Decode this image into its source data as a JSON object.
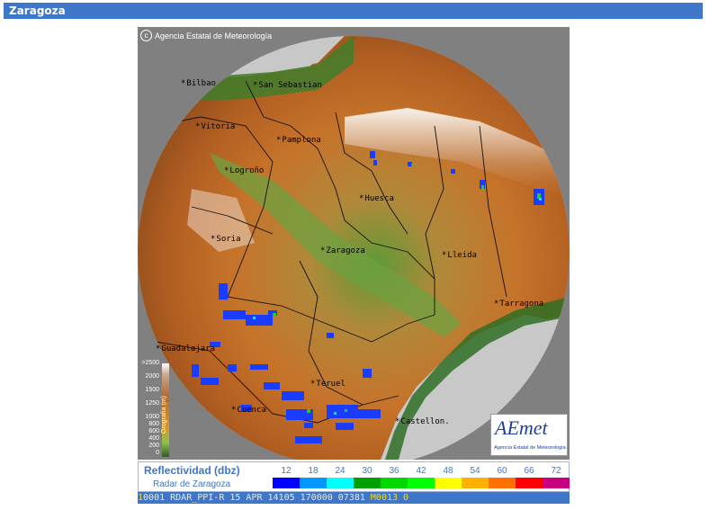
{
  "header": {
    "title": "Zaragoza"
  },
  "map": {
    "copyright": "Agencia Estatal de Meteorología",
    "cities": [
      {
        "name": "Bilbao",
        "id": "bilbao"
      },
      {
        "name": "San Sebastian",
        "id": "san-sebastian"
      },
      {
        "name": "Vitoria",
        "id": "vitoria"
      },
      {
        "name": "Pamplona",
        "id": "pamplona"
      },
      {
        "name": "Logroño",
        "id": "logrono"
      },
      {
        "name": "Huesca",
        "id": "huesca"
      },
      {
        "name": "Soria",
        "id": "soria"
      },
      {
        "name": "Zaragoza",
        "id": "zaragoza"
      },
      {
        "name": "Lleida",
        "id": "lleida"
      },
      {
        "name": "Tarragona",
        "id": "tarragona"
      },
      {
        "name": "Guadalajara",
        "id": "guadalajara"
      },
      {
        "name": "Teruel",
        "id": "teruel"
      },
      {
        "name": "Cuenca",
        "id": "cuenca"
      },
      {
        "name": "Castellon.",
        "id": "castellon"
      }
    ],
    "orography_legend": {
      "title": "Orografía (m)",
      "ticks": [
        ">2500",
        "2000",
        "1500",
        "1250",
        "1000",
        "800",
        "600",
        "400",
        "200",
        "0"
      ]
    },
    "logo": {
      "text": "AEmet",
      "subtitle": "Agencia Estatal de Meteorología"
    }
  },
  "legend": {
    "title": "Reflectividad (dbz)",
    "subtitle": "Radar de Zaragoza",
    "values": [
      "12",
      "18",
      "24",
      "30",
      "36",
      "42",
      "48",
      "54",
      "60",
      "66",
      "72"
    ],
    "colors": [
      "#0000ff",
      "#0099ff",
      "#00ffff",
      "#00a000",
      "#00d800",
      "#00ff00",
      "#ffff00",
      "#ffb000",
      "#ff7000",
      "#ff0000",
      "#c80080"
    ]
  },
  "status": {
    "prefix": "1",
    "text": "0001 RDAR_PPI-R   15 APR 14105 170000 07381 ",
    "tail": "M0013 0"
  }
}
